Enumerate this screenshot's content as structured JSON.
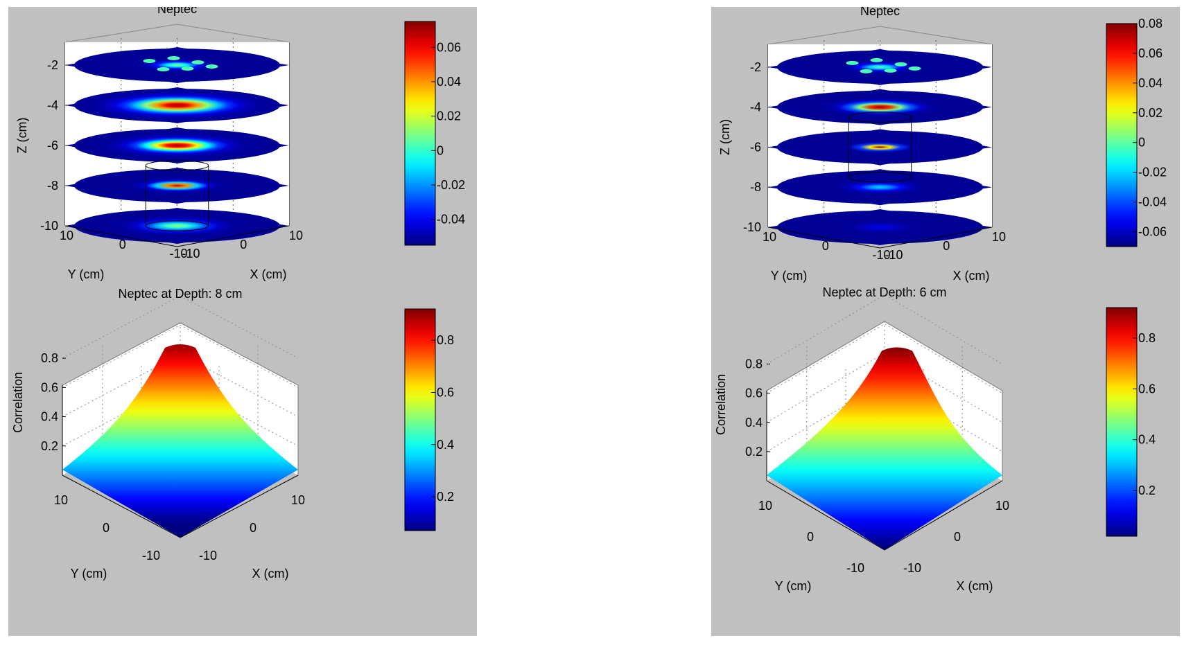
{
  "chart_data": [
    {
      "type": "surface-slices",
      "panel": "left",
      "title": "Neptec",
      "xlabel": "X (cm)",
      "ylabel": "Y (cm)",
      "zlabel": "Z (cm)",
      "x_ticks": [
        "-10",
        "0",
        "10"
      ],
      "y_ticks": [
        "10",
        "0",
        "-10"
      ],
      "z_ticks": [
        "-2",
        "-4",
        "-6",
        "-8",
        "-10"
      ],
      "zlim": [
        -10,
        -1
      ],
      "grid": true,
      "slices": [
        {
          "z": -2,
          "peak": 0.01,
          "spread": 0.25,
          "pattern": "speckle"
        },
        {
          "z": -4,
          "peak": 0.07,
          "spread": 0.55,
          "pattern": "blob"
        },
        {
          "z": -6,
          "peak": 0.07,
          "spread": 0.45,
          "pattern": "blob"
        },
        {
          "z": -8,
          "peak": 0.07,
          "spread": 0.28,
          "pattern": "blob"
        },
        {
          "z": -10,
          "peak": 0.01,
          "spread": 0.4,
          "pattern": "blob"
        }
      ],
      "target_cylinder_z": [
        -10,
        -7
      ],
      "colorbar": {
        "ticks": [
          "0.06",
          "0.04",
          "0.02",
          "0",
          "-0.02",
          "-0.04"
        ],
        "range": [
          -0.055,
          0.075
        ],
        "colormap": "jet"
      }
    },
    {
      "type": "surface",
      "panel": "left",
      "title": "Neptec at Depth: 8 cm",
      "xlabel": "X (cm)",
      "ylabel": "Y (cm)",
      "zlabel": "Correlation",
      "x_ticks": [
        "-10",
        "0",
        "10"
      ],
      "y_ticks": [
        "10",
        "0",
        "-10"
      ],
      "z_ticks": [
        "0.8",
        "0.6",
        "0.4",
        "0.2"
      ],
      "zlim": [
        0,
        0.9
      ],
      "peak": 0.9,
      "grid": true,
      "colorbar": {
        "ticks": [
          "0.8",
          "0.6",
          "0.4",
          "0.2"
        ],
        "range": [
          0.07,
          0.92
        ],
        "colormap": "jet"
      }
    },
    {
      "type": "surface-slices",
      "panel": "right",
      "title": "Neptec",
      "xlabel": "X (cm)",
      "ylabel": "Y (cm)",
      "zlabel": "Z (cm)",
      "x_ticks": [
        "-10",
        "0",
        "10"
      ],
      "y_ticks": [
        "10",
        "0",
        "-10"
      ],
      "z_ticks": [
        "-2",
        "-4",
        "-6",
        "-8",
        "-10"
      ],
      "zlim": [
        -10,
        -1
      ],
      "grid": true,
      "slices": [
        {
          "z": -2,
          "peak": 0.0,
          "spread": 0.25,
          "pattern": "speckle"
        },
        {
          "z": -4,
          "peak": 0.08,
          "spread": 0.35,
          "pattern": "blob"
        },
        {
          "z": -6,
          "peak": 0.08,
          "spread": 0.22,
          "pattern": "blob"
        },
        {
          "z": -8,
          "peak": -0.02,
          "spread": 0.3,
          "pattern": "blob"
        },
        {
          "z": -10,
          "peak": -0.055,
          "spread": 0.3,
          "pattern": "blob"
        }
      ],
      "target_cylinder_z": [
        -7.5,
        -4.5
      ],
      "colorbar": {
        "ticks": [
          "0.08",
          "0.06",
          "0.04",
          "0.02",
          "0",
          "-0.02",
          "-0.04",
          "-0.06"
        ],
        "range": [
          -0.07,
          0.08
        ],
        "colormap": "jet"
      }
    },
    {
      "type": "surface",
      "panel": "right",
      "title": "Neptec at Depth: 6 cm",
      "xlabel": "X (cm)",
      "ylabel": "Y (cm)",
      "zlabel": "Correlation",
      "x_ticks": [
        "-10",
        "0",
        "10"
      ],
      "y_ticks": [
        "10",
        "0",
        "-10"
      ],
      "z_ticks": [
        "0.8",
        "0.6",
        "0.4",
        "0.2"
      ],
      "zlim": [
        0,
        0.95
      ],
      "peak": 0.92,
      "grid": true,
      "colorbar": {
        "ticks": [
          "0.8",
          "0.6",
          "0.4",
          "0.2"
        ],
        "range": [
          0.02,
          0.92
        ],
        "colormap": "jet"
      }
    }
  ]
}
